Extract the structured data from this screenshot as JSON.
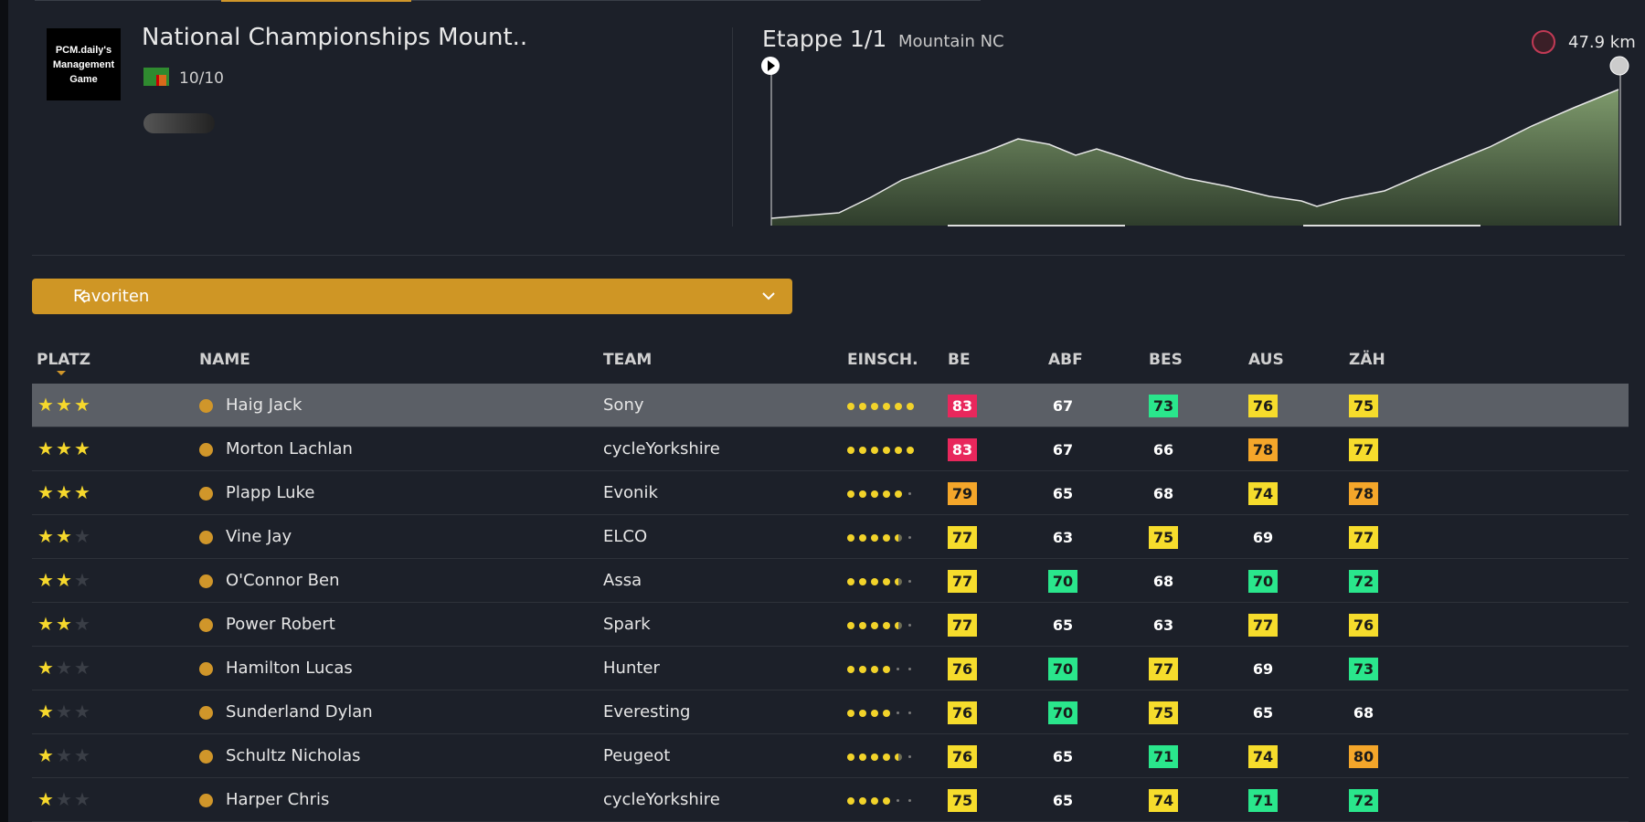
{
  "header": {
    "logo": "PCM.daily's Management Game",
    "title": "National Championships Mount..",
    "count": "10/10",
    "stage": "Etappe 1/1",
    "stage_type": "Mountain NC",
    "distance": "47.9 km"
  },
  "filter": "Favoriten",
  "table": {
    "columns": [
      "PLATZ",
      "NAME",
      "TEAM",
      "EINSCH.",
      "BE",
      "ABF",
      "BES",
      "AUS",
      "ZÄH"
    ],
    "rows": [
      {
        "stars": 3,
        "name": "Haig Jack",
        "team": "Sony",
        "rating": 6,
        "stats": [
          83,
          67,
          73,
          76,
          75
        ]
      },
      {
        "stars": 3,
        "name": "Morton Lachlan",
        "team": "cycleYorkshire",
        "rating": 6,
        "stats": [
          83,
          67,
          66,
          78,
          77
        ]
      },
      {
        "stars": 3,
        "name": "Plapp Luke",
        "team": "Evonik",
        "rating": 5,
        "stats": [
          79,
          65,
          68,
          74,
          78
        ]
      },
      {
        "stars": 2,
        "name": "Vine Jay",
        "team": "ELCO",
        "rating": 4.5,
        "stats": [
          77,
          63,
          75,
          69,
          77
        ]
      },
      {
        "stars": 2,
        "name": "O'Connor Ben",
        "team": "Assa",
        "rating": 4.5,
        "stats": [
          77,
          70,
          68,
          70,
          72
        ]
      },
      {
        "stars": 2,
        "name": "Power Robert",
        "team": "Spark",
        "rating": 4.5,
        "stats": [
          77,
          65,
          63,
          77,
          76
        ]
      },
      {
        "stars": 1,
        "name": "Hamilton Lucas",
        "team": "Hunter",
        "rating": 4,
        "stats": [
          76,
          70,
          77,
          69,
          73
        ]
      },
      {
        "stars": 1,
        "name": "Sunderland Dylan",
        "team": "Everesting",
        "rating": 4,
        "stats": [
          76,
          70,
          75,
          65,
          68
        ]
      },
      {
        "stars": 1,
        "name": "Schultz Nicholas",
        "team": "Peugeot",
        "rating": 4.5,
        "stats": [
          76,
          65,
          71,
          74,
          80
        ]
      },
      {
        "stars": 1,
        "name": "Harper Chris",
        "team": "cycleYorkshire",
        "rating": 4,
        "stats": [
          75,
          65,
          74,
          71,
          72
        ]
      }
    ]
  }
}
